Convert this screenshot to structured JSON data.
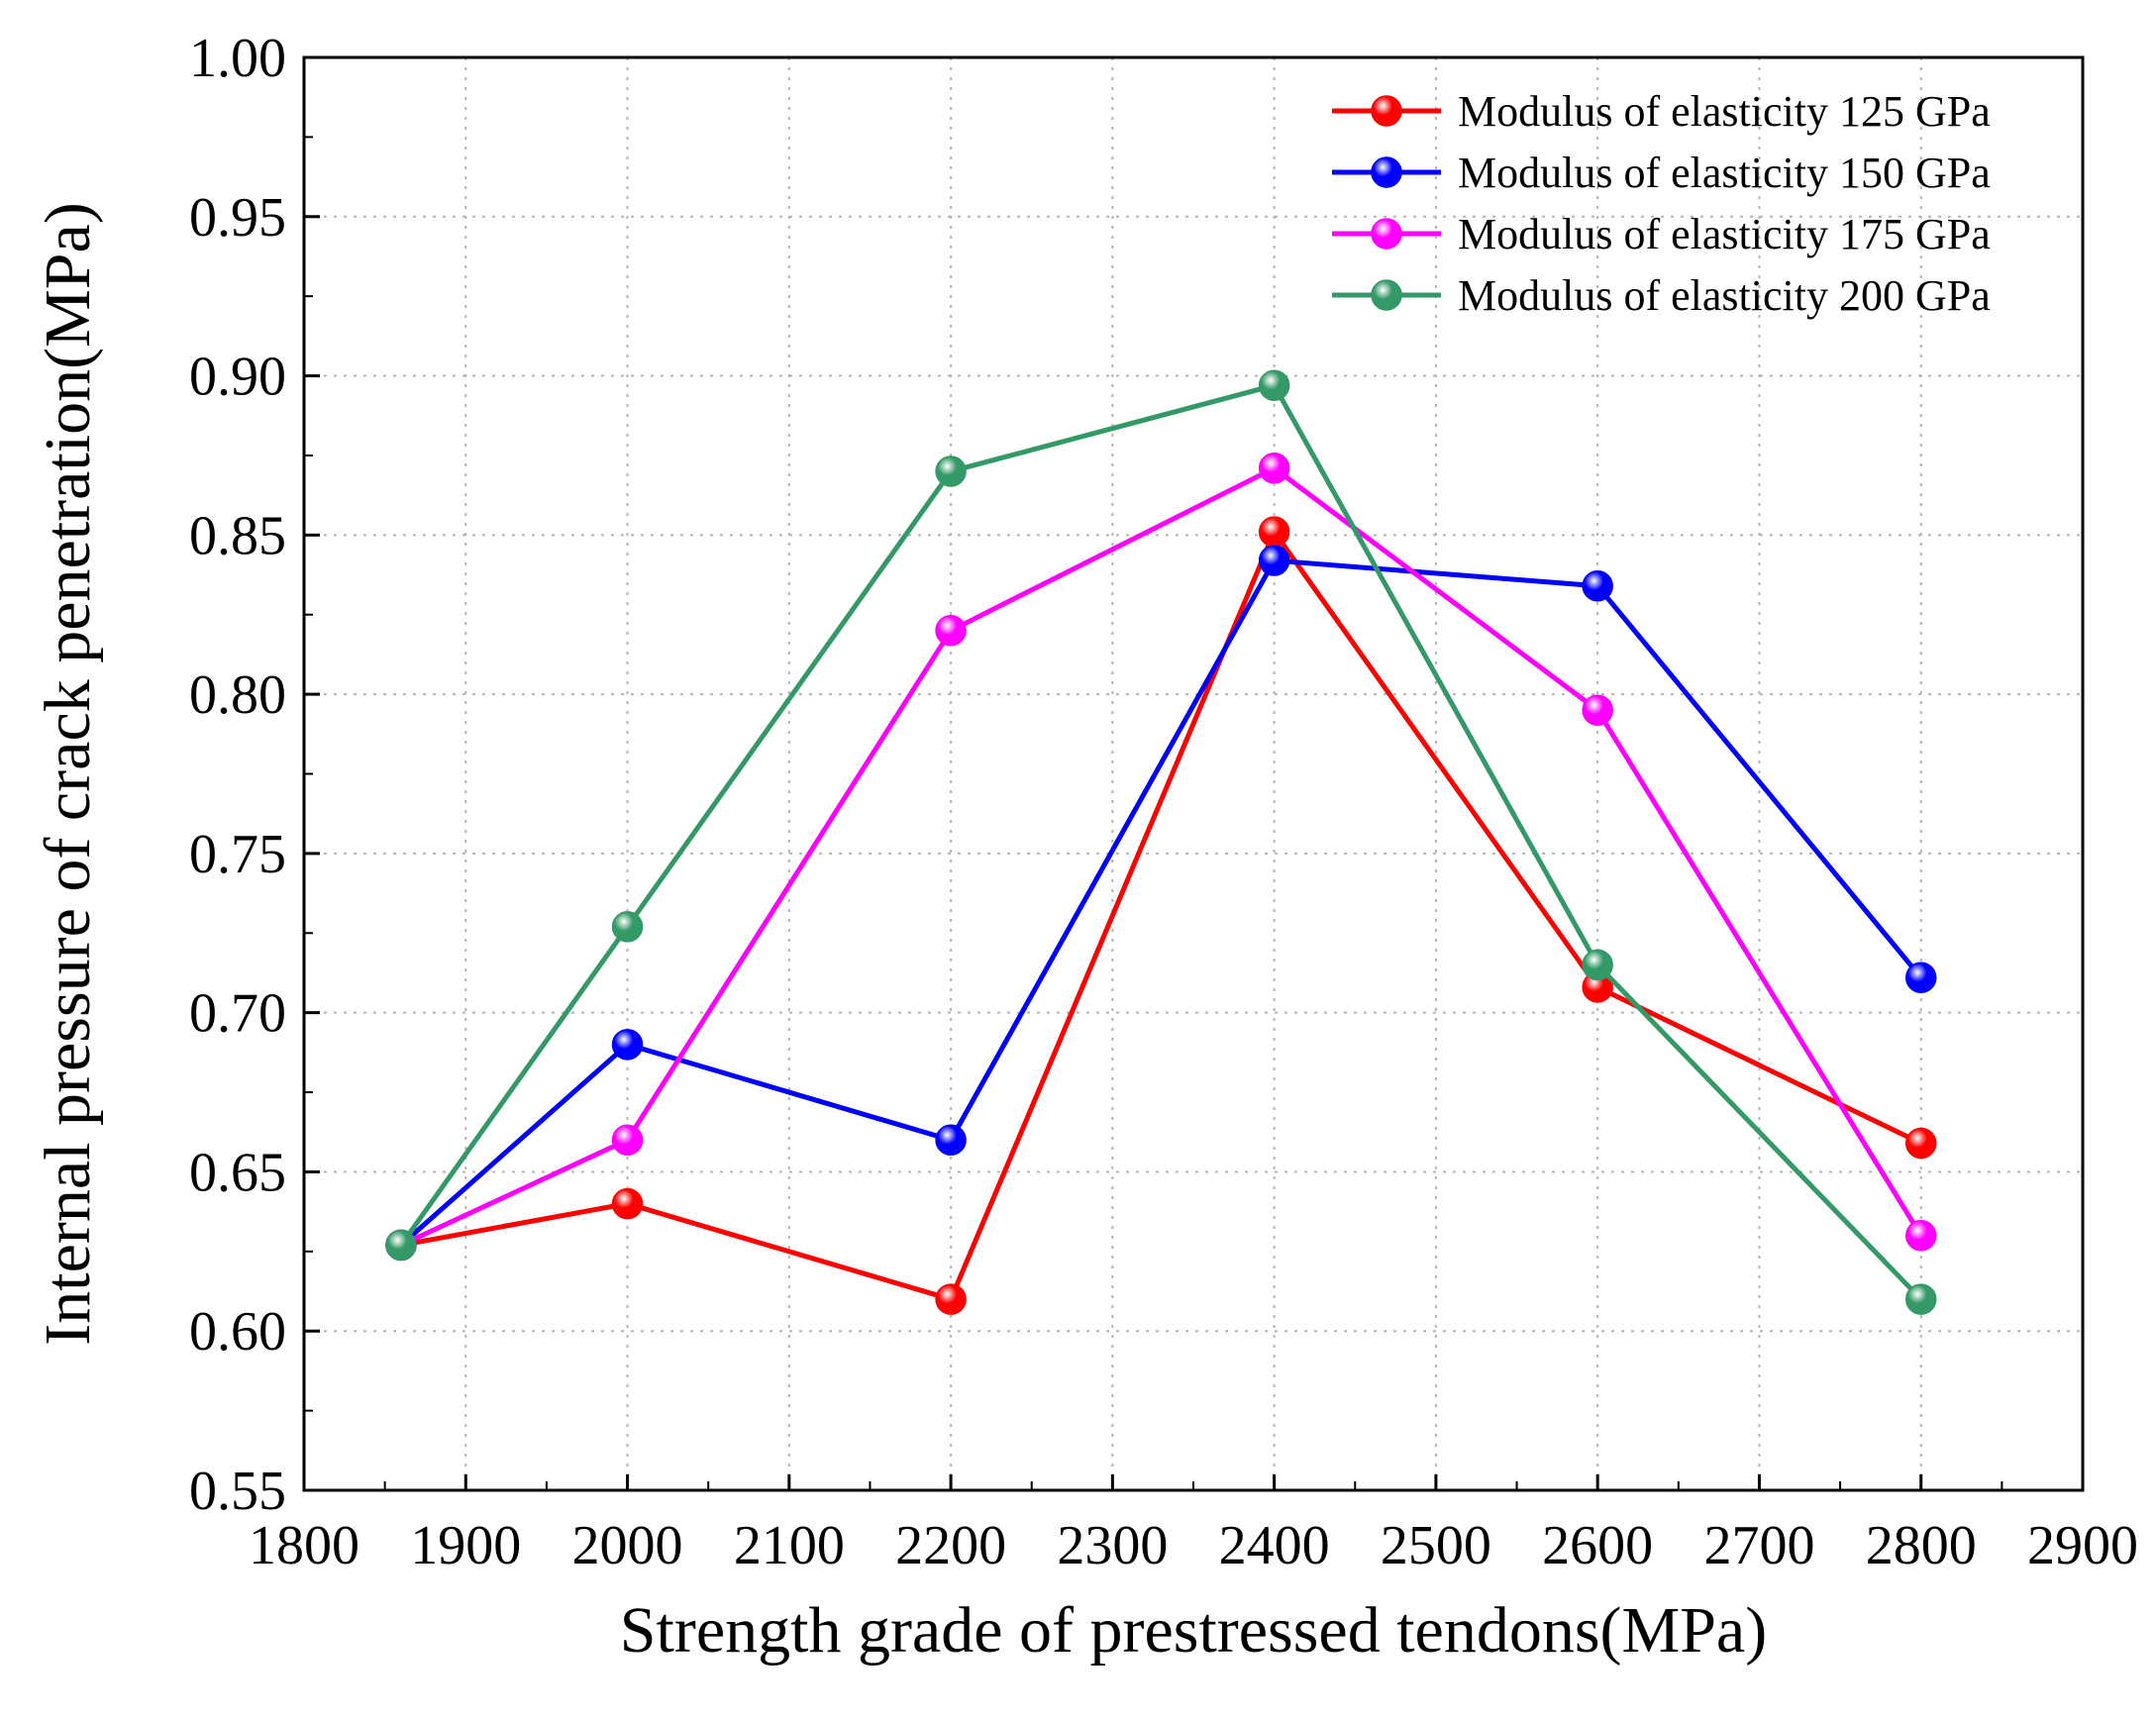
{
  "chart_data": {
    "type": "line",
    "title": "",
    "xlabel": "Strength grade of prestressed tendons(MPa)",
    "ylabel": "Internal pressure of crack penetration(MPa)",
    "xlim": [
      1800,
      2900
    ],
    "ylim": [
      0.55,
      1.0
    ],
    "x_ticks": [
      "1800",
      "1900",
      "2000",
      "2100",
      "2200",
      "2300",
      "2400",
      "2500",
      "2600",
      "2700",
      "2800",
      "2900"
    ],
    "y_ticks": [
      "0.55",
      "0.60",
      "0.65",
      "0.70",
      "0.75",
      "0.80",
      "0.85",
      "0.90",
      "0.95",
      "1.00"
    ],
    "grid": true,
    "legend_position": "top-right",
    "x": [
      1860,
      2000,
      2200,
      2400,
      2600,
      2800
    ],
    "series": [
      {
        "name": "Modulus of elasticity 125 GPa",
        "color": "#ff0000",
        "values": [
          0.627,
          0.64,
          0.61,
          0.851,
          0.708,
          0.659
        ]
      },
      {
        "name": "Modulus of elasticity 150 GPa",
        "color": "#0000ff",
        "values": [
          0.627,
          0.69,
          0.66,
          0.842,
          0.834,
          0.711
        ]
      },
      {
        "name": "Modulus of elasticity 175 GPa",
        "color": "#ff00ff",
        "values": [
          0.627,
          0.66,
          0.82,
          0.871,
          0.795,
          0.63
        ]
      },
      {
        "name": "Modulus of elasticity 200 GPa",
        "color": "#339966",
        "values": [
          0.627,
          0.727,
          0.87,
          0.897,
          0.715,
          0.61
        ]
      }
    ]
  }
}
